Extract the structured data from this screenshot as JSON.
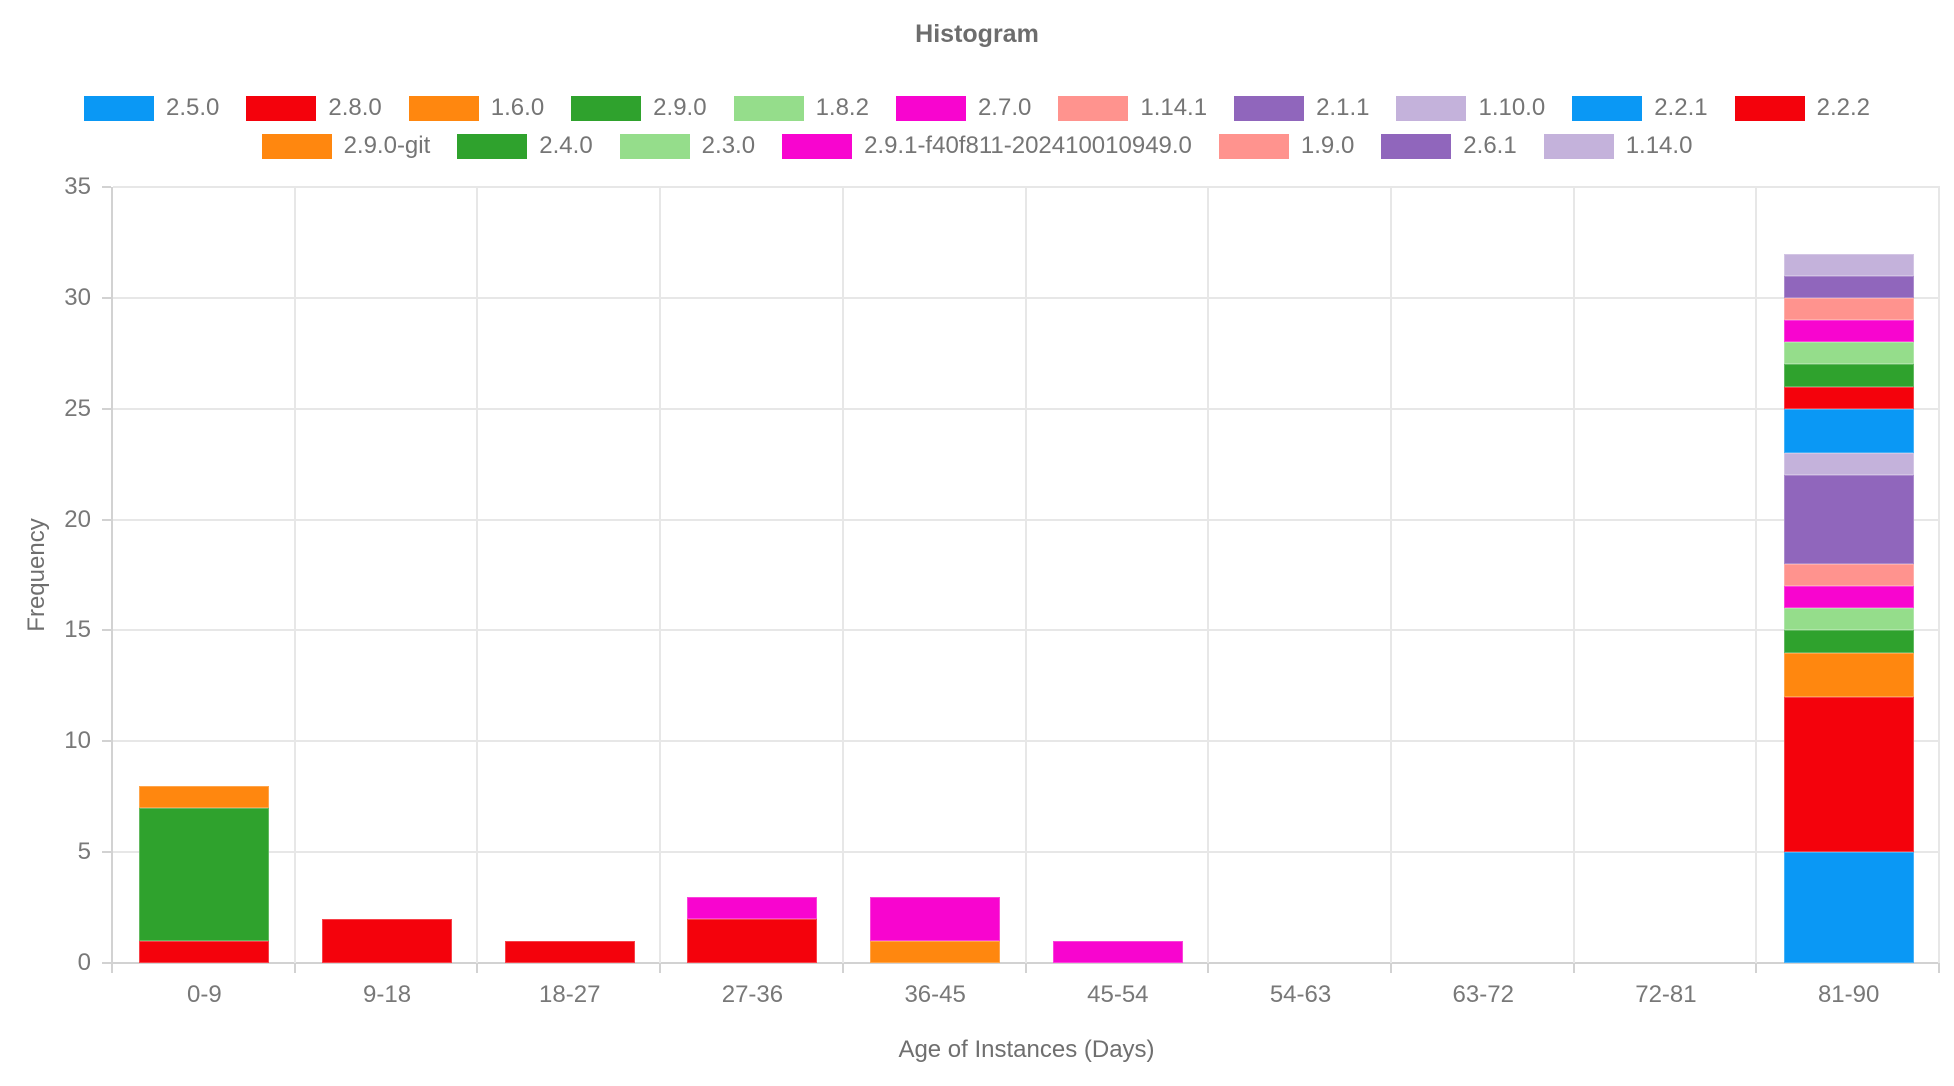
{
  "chart_data": {
    "type": "bar",
    "stacked": true,
    "title": "Histogram",
    "xlabel": "Age of Instances (Days)",
    "ylabel": "Frequency",
    "ylim": [
      0,
      35
    ],
    "yticks": [
      0,
      5,
      10,
      15,
      20,
      25,
      30,
      35
    ],
    "grid": true,
    "legend_position": "top",
    "categories": [
      "0-9",
      "9-18",
      "18-27",
      "27-36",
      "36-45",
      "45-54",
      "54-63",
      "63-72",
      "72-81",
      "81-90"
    ],
    "legend_rows": [
      [
        "2.5.0",
        "2.8.0",
        "1.6.0",
        "2.9.0",
        "1.8.2",
        "2.7.0",
        "1.14.1",
        "2.1.1",
        "1.10.0",
        "2.2.1",
        "2.2.2"
      ],
      [
        "2.9.0-git",
        "2.4.0",
        "2.3.0",
        "2.9.1-f40f811-202410010949.0",
        "1.9.0",
        "2.6.1",
        "1.14.0"
      ]
    ],
    "series": [
      {
        "name": "2.5.0",
        "color": "#0a98f5",
        "values": [
          0,
          0,
          0,
          0,
          0,
          0,
          0,
          0,
          0,
          5
        ]
      },
      {
        "name": "2.8.0",
        "color": "#f4020c",
        "values": [
          1,
          2,
          1,
          2,
          0,
          0,
          0,
          0,
          0,
          7
        ]
      },
      {
        "name": "1.6.0",
        "color": "#ff870f",
        "values": [
          0,
          0,
          0,
          0,
          1,
          0,
          0,
          0,
          0,
          2
        ]
      },
      {
        "name": "2.9.0",
        "color": "#2fa22d",
        "values": [
          6,
          0,
          0,
          0,
          0,
          0,
          0,
          0,
          0,
          1
        ]
      },
      {
        "name": "1.8.2",
        "color": "#95dd8b",
        "values": [
          0,
          0,
          0,
          0,
          0,
          0,
          0,
          0,
          0,
          1
        ]
      },
      {
        "name": "2.7.0",
        "color": "#f805cf",
        "values": [
          0,
          0,
          0,
          1,
          2,
          1,
          0,
          0,
          0,
          1
        ]
      },
      {
        "name": "1.14.1",
        "color": "#ff938e",
        "values": [
          0,
          0,
          0,
          0,
          0,
          0,
          0,
          0,
          0,
          1
        ]
      },
      {
        "name": "2.1.1",
        "color": "#9066bc",
        "values": [
          0,
          0,
          0,
          0,
          0,
          0,
          0,
          0,
          0,
          4
        ]
      },
      {
        "name": "1.10.0",
        "color": "#c4b2db",
        "values": [
          0,
          0,
          0,
          0,
          0,
          0,
          0,
          0,
          0,
          1
        ]
      },
      {
        "name": "2.2.1",
        "color": "#0a98f5",
        "values": [
          0,
          0,
          0,
          0,
          0,
          0,
          0,
          0,
          0,
          2
        ]
      },
      {
        "name": "2.2.2",
        "color": "#f4020c",
        "values": [
          0,
          0,
          0,
          0,
          0,
          0,
          0,
          0,
          0,
          1
        ]
      },
      {
        "name": "2.9.0-git",
        "color": "#ff870f",
        "values": [
          1,
          0,
          0,
          0,
          0,
          0,
          0,
          0,
          0,
          0
        ]
      },
      {
        "name": "2.4.0",
        "color": "#2fa22d",
        "values": [
          0,
          0,
          0,
          0,
          0,
          0,
          0,
          0,
          0,
          1
        ]
      },
      {
        "name": "2.3.0",
        "color": "#95dd8b",
        "values": [
          0,
          0,
          0,
          0,
          0,
          0,
          0,
          0,
          0,
          1
        ]
      },
      {
        "name": "2.9.1-f40f811-202410010949.0",
        "color": "#f805cf",
        "values": [
          0,
          0,
          0,
          0,
          0,
          0,
          0,
          0,
          0,
          1
        ]
      },
      {
        "name": "1.9.0",
        "color": "#ff938e",
        "values": [
          0,
          0,
          0,
          0,
          0,
          0,
          0,
          0,
          0,
          1
        ]
      },
      {
        "name": "2.6.1",
        "color": "#9066bc",
        "values": [
          0,
          0,
          0,
          0,
          0,
          0,
          0,
          0,
          0,
          1
        ]
      },
      {
        "name": "1.14.0",
        "color": "#c4b2db",
        "values": [
          0,
          0,
          0,
          0,
          0,
          0,
          0,
          0,
          0,
          1
        ]
      }
    ],
    "bar_totals": [
      8,
      2,
      1,
      3,
      3,
      1,
      0,
      0,
      0,
      32
    ]
  }
}
